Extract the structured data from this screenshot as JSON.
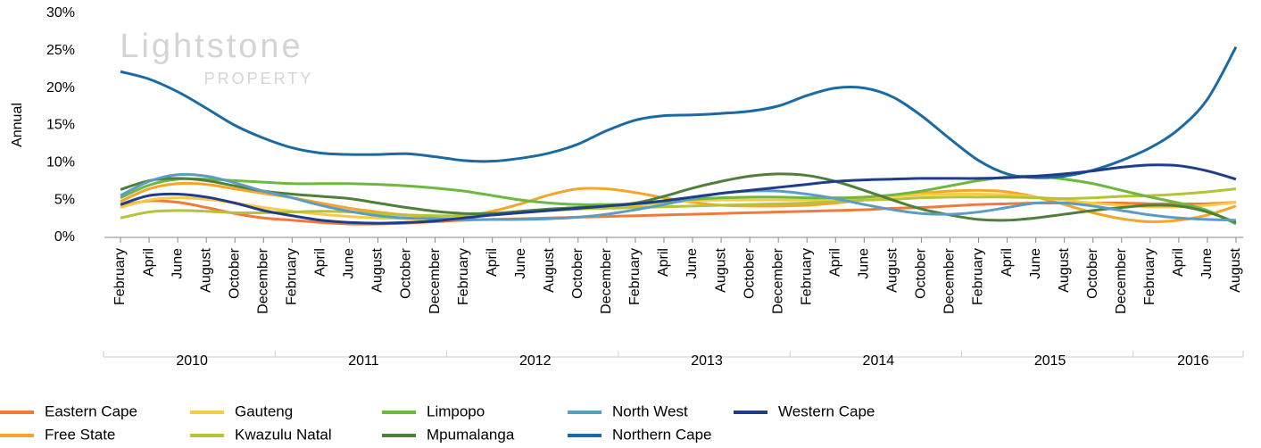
{
  "chart_data": {
    "type": "line",
    "y_label": "Annual",
    "watermark": {
      "name": "Lightstone",
      "sub": "PROPERTY"
    },
    "categories": [
      "February",
      "April",
      "June",
      "August",
      "October",
      "December",
      "February",
      "April",
      "June",
      "August",
      "October",
      "December",
      "February",
      "April",
      "June",
      "August",
      "October",
      "December",
      "February",
      "April",
      "June",
      "August",
      "October",
      "December",
      "February",
      "April",
      "June",
      "August",
      "October",
      "December",
      "February",
      "April",
      "June",
      "August",
      "October",
      "December",
      "February",
      "April",
      "June",
      "August"
    ],
    "x_groups": [
      {
        "label": "2010",
        "count": 6
      },
      {
        "label": "2011",
        "count": 6
      },
      {
        "label": "2012",
        "count": 6
      },
      {
        "label": "2013",
        "count": 6
      },
      {
        "label": "2014",
        "count": 6
      },
      {
        "label": "2015",
        "count": 6
      },
      {
        "label": "2016",
        "count": 4
      }
    ],
    "ylim": [
      0,
      30
    ],
    "yticks": [
      {
        "value": 0,
        "label": "0%"
      },
      {
        "value": 5,
        "label": "5%"
      },
      {
        "value": 10,
        "label": "10%"
      },
      {
        "value": 15,
        "label": "15%"
      },
      {
        "value": 20,
        "label": "20%"
      },
      {
        "value": 25,
        "label": "25%"
      },
      {
        "value": 30,
        "label": "30%"
      }
    ],
    "grid": false,
    "series": [
      {
        "name": "Eastern Cape",
        "color": "#ef7b3b",
        "values": [
          4.2,
          4.9,
          4.7,
          4.0,
          3.2,
          2.6,
          2.3,
          2.0,
          1.8,
          1.8,
          1.9,
          2.1,
          2.3,
          2.4,
          2.5,
          2.6,
          2.7,
          2.8,
          2.9,
          3.0,
          3.1,
          3.2,
          3.3,
          3.4,
          3.5,
          3.6,
          3.7,
          3.9,
          4.0,
          4.2,
          4.4,
          4.5,
          4.6,
          4.6,
          4.6,
          4.6,
          4.5,
          4.5,
          4.5,
          4.7
        ]
      },
      {
        "name": "Free State",
        "color": "#f5a52a",
        "values": [
          4.8,
          6.5,
          7.2,
          7.1,
          6.5,
          5.9,
          5.3,
          4.6,
          3.9,
          3.4,
          3.0,
          2.8,
          2.9,
          3.5,
          4.5,
          5.7,
          6.5,
          6.5,
          6.0,
          5.3,
          4.7,
          4.3,
          4.2,
          4.2,
          4.3,
          4.6,
          5.0,
          5.5,
          5.9,
          6.2,
          6.3,
          6.1,
          5.4,
          4.4,
          3.3,
          2.5,
          2.1,
          2.3,
          3.0,
          4.2
        ]
      },
      {
        "name": "Gauteng",
        "color": "#f7cb45",
        "values": [
          4.0,
          5.0,
          5.3,
          5.1,
          4.6,
          4.0,
          3.5,
          3.1,
          2.8,
          2.6,
          2.5,
          2.5,
          2.7,
          3.0,
          3.3,
          3.6,
          3.8,
          4.0,
          4.3,
          4.6,
          4.9,
          5.0,
          5.0,
          5.0,
          5.0,
          5.1,
          5.3,
          5.5,
          5.7,
          5.8,
          5.8,
          5.7,
          5.4,
          5.0,
          4.6,
          4.3,
          4.1,
          4.1,
          4.3,
          4.7
        ]
      },
      {
        "name": "Kwazulu Natal",
        "color": "#b4c435",
        "values": [
          2.6,
          3.4,
          3.6,
          3.5,
          3.3,
          3.3,
          3.4,
          3.5,
          3.4,
          3.2,
          3.0,
          2.9,
          2.9,
          3.1,
          3.4,
          3.6,
          3.8,
          3.9,
          4.0,
          4.1,
          4.2,
          4.3,
          4.4,
          4.5,
          4.6,
          4.8,
          5.0,
          5.1,
          5.3,
          5.4,
          5.4,
          5.4,
          5.3,
          5.2,
          5.3,
          5.5,
          5.6,
          5.8,
          6.1,
          6.5
        ]
      },
      {
        "name": "Limpopo",
        "color": "#6db83f",
        "values": [
          5.3,
          7.0,
          7.8,
          7.8,
          7.6,
          7.4,
          7.2,
          7.2,
          7.2,
          7.1,
          6.9,
          6.6,
          6.2,
          5.6,
          5.0,
          4.6,
          4.4,
          4.4,
          4.5,
          4.8,
          5.1,
          5.3,
          5.4,
          5.4,
          5.3,
          5.3,
          5.4,
          5.7,
          6.2,
          6.9,
          7.6,
          8.1,
          8.2,
          7.8,
          7.2,
          6.3,
          5.4,
          4.6,
          3.6,
          1.8
        ]
      },
      {
        "name": "Mpumalanga",
        "color": "#4f803a",
        "values": [
          6.4,
          7.6,
          7.9,
          7.6,
          6.9,
          6.2,
          5.8,
          5.5,
          5.2,
          4.6,
          4.0,
          3.5,
          3.2,
          3.2,
          3.5,
          3.8,
          4.0,
          4.2,
          4.6,
          5.5,
          6.6,
          7.5,
          8.2,
          8.5,
          8.3,
          7.5,
          6.3,
          5.0,
          3.8,
          3.0,
          2.4,
          2.3,
          2.6,
          3.1,
          3.6,
          4.0,
          4.3,
          4.2,
          3.4,
          2.0
        ]
      },
      {
        "name": "North West",
        "color": "#5b9cc6",
        "values": [
          5.6,
          7.5,
          8.4,
          8.2,
          7.3,
          6.2,
          5.3,
          4.3,
          3.5,
          2.9,
          2.6,
          2.5,
          2.4,
          2.4,
          2.4,
          2.5,
          2.7,
          3.1,
          3.7,
          4.4,
          5.2,
          5.9,
          6.2,
          6.2,
          5.8,
          5.2,
          4.4,
          3.7,
          3.2,
          3.1,
          3.4,
          4.0,
          4.6,
          4.6,
          4.2,
          3.6,
          3.0,
          2.6,
          2.4,
          2.3
        ]
      },
      {
        "name": "Northern Cape",
        "color": "#1c6aa4",
        "values": [
          22.2,
          21.2,
          19.5,
          17.3,
          15.0,
          13.3,
          12.0,
          11.3,
          11.1,
          11.1,
          11.2,
          10.8,
          10.3,
          10.2,
          10.6,
          11.3,
          12.5,
          14.3,
          15.7,
          16.3,
          16.4,
          16.6,
          16.9,
          17.6,
          19.0,
          20.0,
          20.0,
          18.8,
          16.3,
          13.2,
          10.3,
          8.5,
          8.0,
          8.2,
          9.0,
          10.3,
          12.0,
          14.5,
          18.5,
          25.5
        ]
      },
      {
        "name": "Western Cape",
        "color": "#1f3d88",
        "values": [
          4.4,
          5.6,
          5.8,
          5.4,
          4.6,
          3.6,
          2.9,
          2.3,
          2.0,
          1.9,
          2.0,
          2.2,
          2.6,
          3.0,
          3.3,
          3.6,
          3.9,
          4.2,
          4.5,
          4.9,
          5.4,
          5.9,
          6.3,
          6.7,
          7.1,
          7.5,
          7.7,
          7.8,
          7.9,
          7.9,
          7.9,
          8.0,
          8.2,
          8.5,
          8.9,
          9.4,
          9.7,
          9.6,
          8.9,
          7.8
        ]
      }
    ]
  }
}
